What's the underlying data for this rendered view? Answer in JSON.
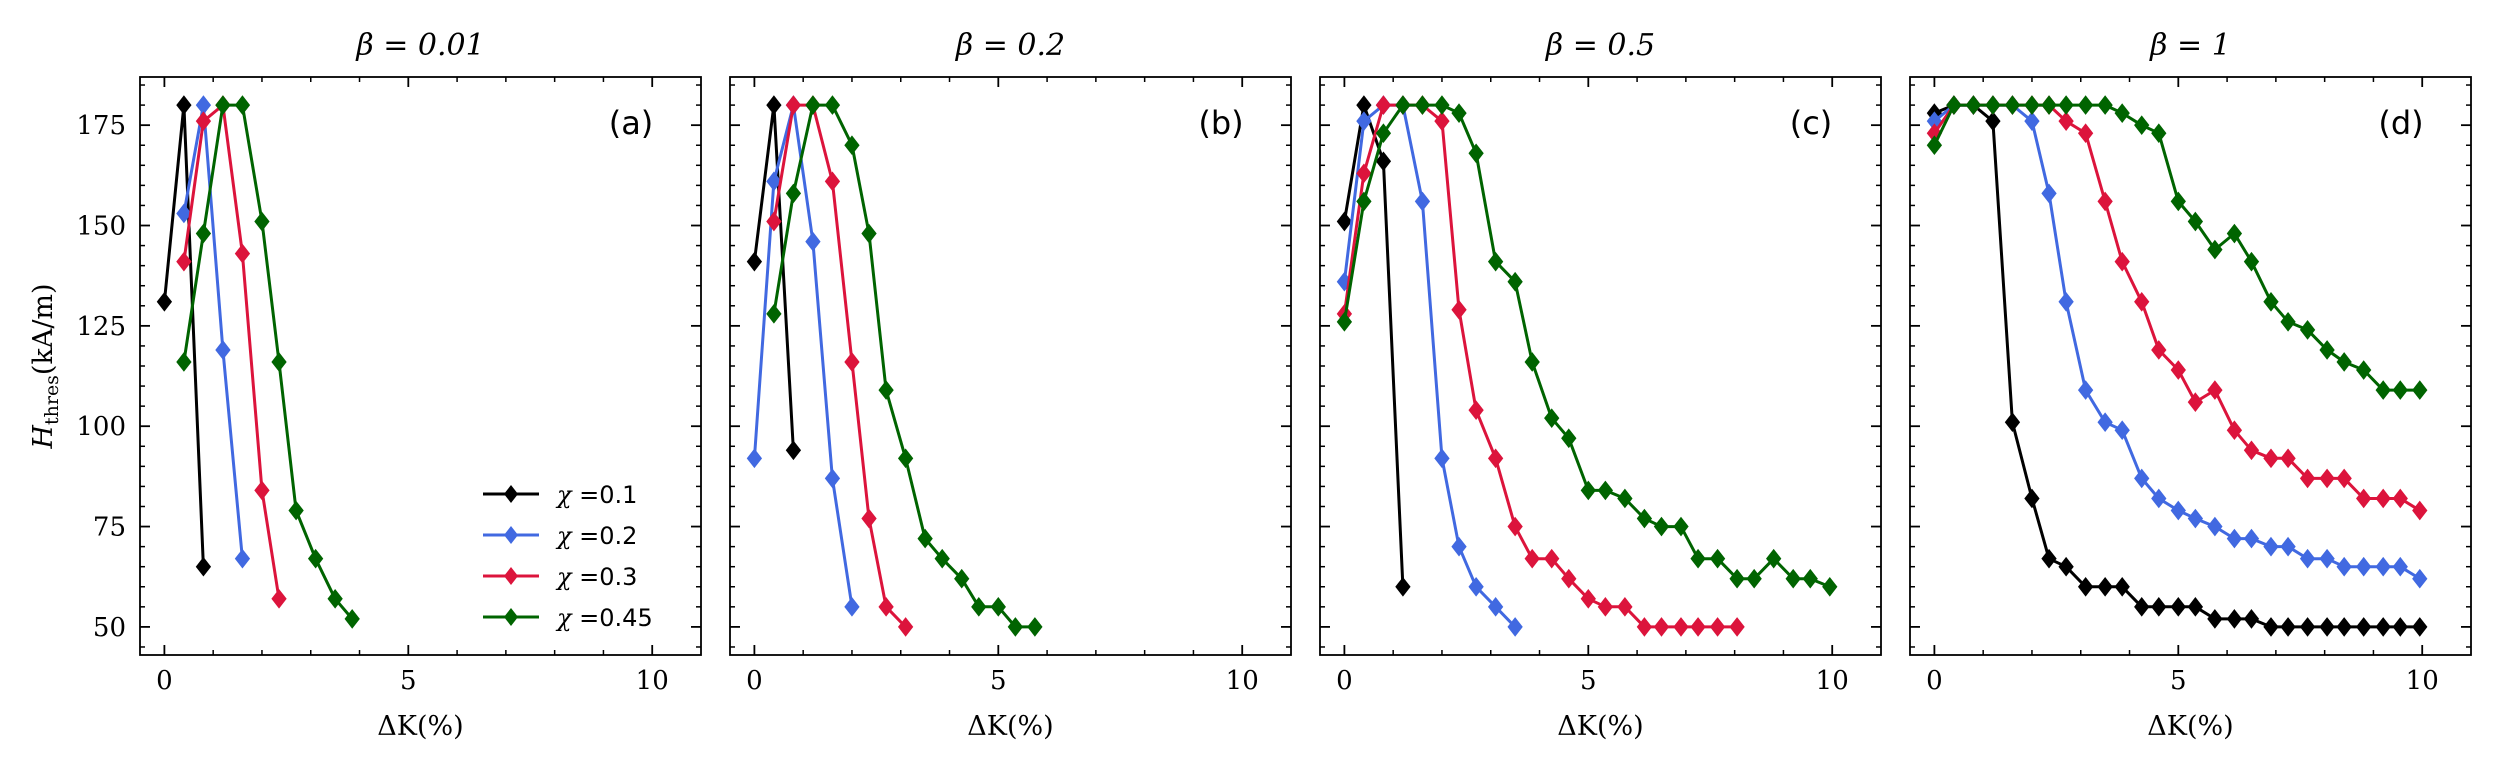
{
  "chart_data": {
    "type": "line",
    "ylabel_main": "H",
    "ylabel_sub": "thres",
    "ylabel_unit": "(kA/m)",
    "xlabel": "ΔK(%)",
    "xlim": [
      -0.5,
      11.0
    ],
    "ylim": [
      43,
      187
    ],
    "xticks": [
      0,
      5,
      10
    ],
    "yticks": [
      50,
      75,
      100,
      125,
      150,
      175
    ],
    "legend": {
      "position": "lower-right of panel (a)",
      "prefix": "χ =",
      "entries": [
        "0.1",
        "0.2",
        "0.3",
        "0.45"
      ]
    },
    "series_colors": [
      "#000000",
      "#4169e1",
      "#dc143c",
      "#006400"
    ],
    "panels": [
      {
        "title": "β = 0.01",
        "letter": "(a)",
        "series": [
          {
            "name": "χ = 0.1",
            "x": [
              0,
              0.4,
              0.8
            ],
            "y": [
              131,
              180,
              65
            ]
          },
          {
            "name": "χ = 0.2",
            "x": [
              0.4,
              0.8,
              1.2,
              1.6
            ],
            "y": [
              153,
              180,
              119,
              67
            ]
          },
          {
            "name": "χ = 0.3",
            "x": [
              0.4,
              0.8,
              1.2,
              1.6,
              2.0,
              2.35
            ],
            "y": [
              141,
              176,
              180,
              143,
              84,
              57
            ]
          },
          {
            "name": "χ = 0.45",
            "x": [
              0.4,
              0.8,
              1.2,
              1.6,
              2.0,
              2.35,
              2.7,
              3.1,
              3.5,
              3.85
            ],
            "y": [
              116,
              148,
              180,
              180,
              151,
              116,
              79,
              67,
              57,
              52
            ]
          }
        ]
      },
      {
        "title": "β = 0.2",
        "letter": "(b)",
        "series": [
          {
            "name": "χ = 0.1",
            "x": [
              0,
              0.4,
              0.8
            ],
            "y": [
              141,
              180,
              94
            ]
          },
          {
            "name": "χ = 0.2",
            "x": [
              0,
              0.4,
              0.8,
              1.2,
              1.6,
              2.0
            ],
            "y": [
              92,
              161,
              180,
              146,
              87,
              55
            ]
          },
          {
            "name": "χ = 0.3",
            "x": [
              0.4,
              0.8,
              1.2,
              1.6,
              2.0,
              2.35,
              2.7,
              3.1
            ],
            "y": [
              151,
              180,
              180,
              161,
              116,
              77,
              55,
              50
            ]
          },
          {
            "name": "χ = 0.45",
            "x": [
              0.4,
              0.8,
              1.2,
              1.6,
              2.0,
              2.35,
              2.7,
              3.1,
              3.5,
              3.85,
              4.25,
              4.6,
              5.0,
              5.35,
              5.75
            ],
            "y": [
              128,
              158,
              180,
              180,
              170,
              148,
              109,
              92,
              72,
              67,
              62,
              55,
              55,
              50,
              50
            ]
          }
        ]
      },
      {
        "title": "β = 0.5",
        "letter": "(c)",
        "series": [
          {
            "name": "χ = 0.1",
            "x": [
              0,
              0.4,
              0.8,
              1.2
            ],
            "y": [
              151,
              180,
              166,
              60
            ]
          },
          {
            "name": "χ = 0.2",
            "x": [
              0,
              0.4,
              0.8,
              1.2,
              1.6,
              2.0,
              2.35,
              2.7,
              3.1,
              3.5
            ],
            "y": [
              136,
              176,
              180,
              180,
              156,
              92,
              70,
              60,
              55,
              50
            ]
          },
          {
            "name": "χ = 0.3",
            "x": [
              0,
              0.4,
              0.8,
              1.2,
              1.6,
              2.0,
              2.35,
              2.7,
              3.1,
              3.5,
              3.85,
              4.25,
              4.6,
              5.0,
              5.35,
              5.75,
              6.15,
              6.5,
              6.9,
              7.25,
              7.65,
              8.05
            ],
            "y": [
              128,
              163,
              180,
              180,
              180,
              176,
              129,
              104,
              92,
              75,
              67,
              67,
              62,
              57,
              55,
              55,
              50,
              50,
              50,
              50,
              50,
              50
            ]
          },
          {
            "name": "χ = 0.45",
            "x": [
              0,
              0.4,
              0.8,
              1.2,
              1.6,
              2.0,
              2.35,
              2.7,
              3.1,
              3.5,
              3.85,
              4.25,
              4.6,
              5.0,
              5.35,
              5.75,
              6.15,
              6.5,
              6.9,
              7.25,
              7.65,
              8.05,
              8.4,
              8.8,
              9.2,
              9.55,
              9.95
            ],
            "y": [
              126,
              156,
              173,
              180,
              180,
              180,
              178,
              168,
              141,
              136,
              116,
              102,
              97,
              84,
              84,
              82,
              77,
              75,
              75,
              67,
              67,
              62,
              62,
              67,
              62,
              62,
              60
            ]
          }
        ]
      },
      {
        "title": "β = 1",
        "letter": "(d)",
        "series": [
          {
            "name": "χ = 0.1",
            "x": [
              0,
              0.4,
              0.8,
              1.2,
              1.6,
              2.0,
              2.35,
              2.7,
              3.1,
              3.5,
              3.85,
              4.25,
              4.6,
              5.0,
              5.35,
              5.75,
              6.15,
              6.5,
              6.9,
              7.25,
              7.65,
              8.05,
              8.4,
              8.8,
              9.2,
              9.55,
              9.95
            ],
            "y": [
              178,
              180,
              180,
              176,
              101,
              82,
              67,
              65,
              60,
              60,
              60,
              55,
              55,
              55,
              55,
              52,
              52,
              52,
              50,
              50,
              50,
              50,
              50,
              50,
              50,
              50,
              50
            ]
          },
          {
            "name": "χ = 0.2",
            "x": [
              0,
              0.4,
              0.8,
              1.2,
              1.6,
              2.0,
              2.35,
              2.7,
              3.1,
              3.5,
              3.85,
              4.25,
              4.6,
              5.0,
              5.35,
              5.75,
              6.15,
              6.5,
              6.9,
              7.25,
              7.65,
              8.05,
              8.4,
              8.8,
              9.2,
              9.55,
              9.95
            ],
            "y": [
              176,
              180,
              180,
              180,
              180,
              176,
              158,
              131,
              109,
              101,
              99,
              87,
              82,
              79,
              77,
              75,
              72,
              72,
              70,
              70,
              67,
              67,
              65,
              65,
              65,
              65,
              62
            ]
          },
          {
            "name": "χ = 0.3",
            "x": [
              0,
              0.4,
              0.8,
              1.2,
              1.6,
              2.0,
              2.35,
              2.7,
              3.1,
              3.5,
              3.85,
              4.25,
              4.6,
              5.0,
              5.35,
              5.75,
              6.15,
              6.5,
              6.9,
              7.25,
              7.65,
              8.05,
              8.4,
              8.8,
              9.2,
              9.55,
              9.95
            ],
            "y": [
              173,
              180,
              180,
              180,
              180,
              180,
              180,
              176,
              173,
              156,
              141,
              131,
              119,
              114,
              106,
              109,
              99,
              94,
              92,
              92,
              87,
              87,
              87,
              82,
              82,
              82,
              79
            ]
          },
          {
            "name": "χ = 0.45",
            "x": [
              0,
              0.4,
              0.8,
              1.2,
              1.6,
              2.0,
              2.35,
              2.7,
              3.1,
              3.5,
              3.85,
              4.25,
              4.6,
              5.0,
              5.35,
              5.75,
              6.15,
              6.5,
              6.9,
              7.25,
              7.65,
              8.05,
              8.4,
              8.8,
              9.2,
              9.55,
              9.95
            ],
            "y": [
              170,
              180,
              180,
              180,
              180,
              180,
              180,
              180,
              180,
              180,
              178,
              175,
              173,
              156,
              151,
              144,
              148,
              141,
              131,
              126,
              124,
              119,
              116,
              114,
              109,
              109,
              109
            ]
          }
        ]
      }
    ]
  }
}
